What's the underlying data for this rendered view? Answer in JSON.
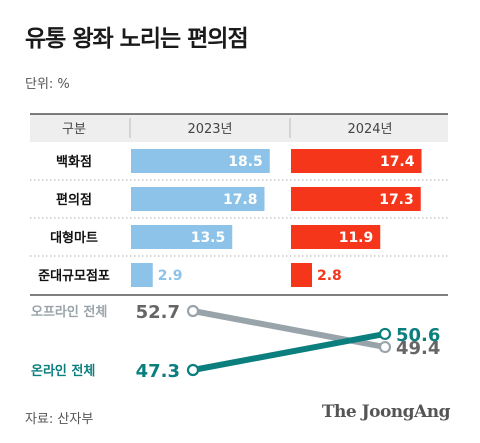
{
  "title": "유통 왕좌 노리는 편의점",
  "unit_label": "단위: %",
  "source": "자료: 산자부",
  "logo": "The JoongAng",
  "colors": {
    "bar_2023": "#8DC3E8",
    "bar_2024": "#F5361A",
    "offline_line": "#99A4AA",
    "online_line": "#0B7E7E"
  },
  "chart_data": [
    {
      "type": "bar",
      "header_label": "구분",
      "categories": [
        "백화점",
        "편의점",
        "대형마트",
        "준대규모점포"
      ],
      "series": [
        {
          "name": "2023년",
          "values": [
            18.5,
            17.8,
            13.5,
            2.9
          ]
        },
        {
          "name": "2024년",
          "values": [
            17.4,
            17.3,
            11.9,
            2.8
          ]
        }
      ],
      "xlim": [
        0,
        20
      ]
    },
    {
      "type": "line",
      "x": [
        "2023년",
        "2024년"
      ],
      "series": [
        {
          "name": "오프라인 전체",
          "values": [
            52.7,
            49.4
          ]
        },
        {
          "name": "온라인 전체",
          "values": [
            47.3,
            50.6
          ]
        }
      ],
      "ylim": [
        47.3,
        52.7
      ]
    }
  ]
}
